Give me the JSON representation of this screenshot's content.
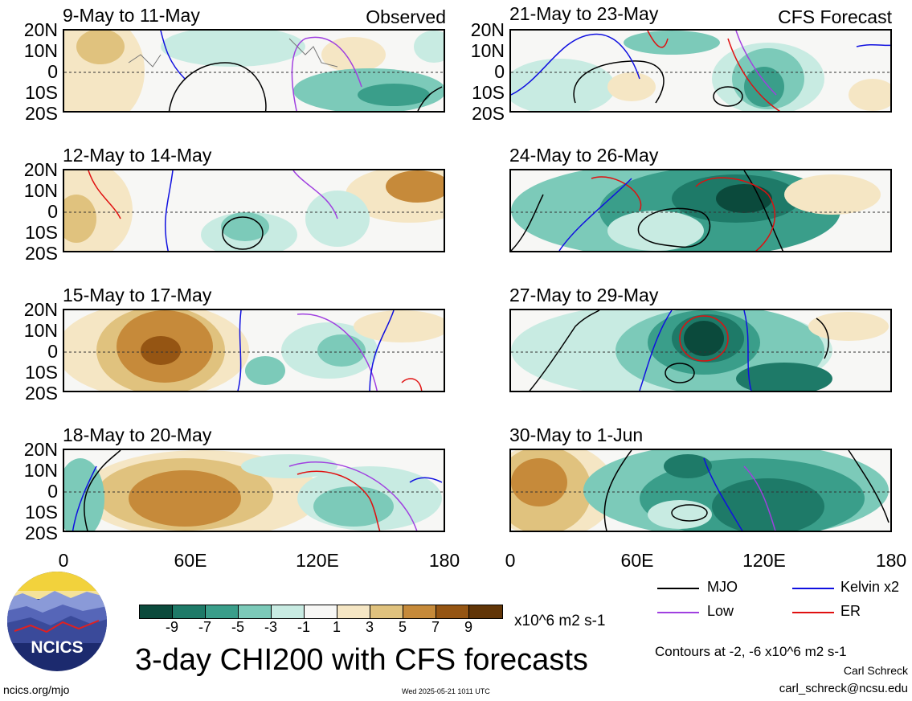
{
  "panels": [
    {
      "title": "9-May to 11-May",
      "tag": "Observed"
    },
    {
      "title": "12-May to 14-May",
      "tag": ""
    },
    {
      "title": "15-May to 17-May",
      "tag": ""
    },
    {
      "title": "18-May to 20-May",
      "tag": ""
    },
    {
      "title": "21-May to 23-May",
      "tag": "CFS Forecast"
    },
    {
      "title": "24-May to 26-May",
      "tag": ""
    },
    {
      "title": "27-May to 29-May",
      "tag": ""
    },
    {
      "title": "30-May to 1-Jun",
      "tag": ""
    }
  ],
  "lat_labels": [
    "20N",
    "10N",
    "0",
    "10S",
    "20S"
  ],
  "lon_labels": [
    "0",
    "60E",
    "120E",
    "180"
  ],
  "legend": {
    "mjo": "MJO",
    "kelvin": "Kelvin x2",
    "low": "Low",
    "er": "ER",
    "colors": {
      "mjo": "#000000",
      "kelvin": "#1010e0",
      "low": "#a040e0",
      "er": "#e01010"
    }
  },
  "colorbar": {
    "ticks": [
      "-9",
      "-7",
      "-5",
      "-3",
      "-1",
      "1",
      "3",
      "5",
      "7",
      "9"
    ],
    "units": "x10^6 m2 s-1",
    "colors": [
      "#0b4a3c",
      "#1e7a68",
      "#3a9e8a",
      "#7ccab9",
      "#c8ebe2",
      "#f7f7f5",
      "#f5e6c4",
      "#e0c27e",
      "#c68a3a",
      "#955513",
      "#613507"
    ]
  },
  "main_title": "3-day CHI200 with CFS forecasts",
  "contour_note": "Contours at -2, -6 x10^6 m2 s-1",
  "author": "Carl Schreck",
  "email": "carl_schreck@ncsu.edu",
  "url": "ncics.org/mjo",
  "timestamp": "Wed 2025-05-21 1011 UTC",
  "logo_text": "NCICS"
}
